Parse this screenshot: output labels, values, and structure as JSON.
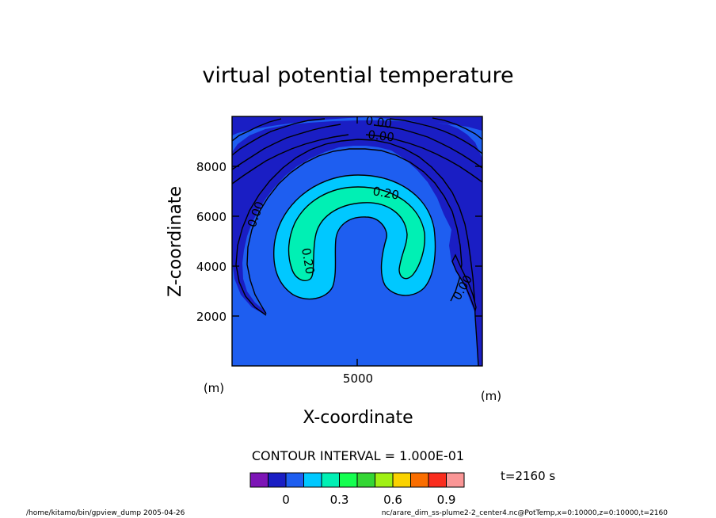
{
  "chart_data": {
    "type": "contour",
    "title": "virtual potential temperature",
    "xlabel": "X-coordinate",
    "ylabel": "Z-coordinate",
    "x_unit": "(m)",
    "y_unit": "(m)",
    "xlim": [
      0,
      10000
    ],
    "ylim": [
      0,
      10000
    ],
    "x_ticks": [
      5000
    ],
    "y_ticks": [
      2000,
      4000,
      6000,
      8000
    ],
    "x_tick_labels": [
      "5000"
    ],
    "y_tick_labels": [
      "2000",
      "4000",
      "6000",
      "8000"
    ],
    "contour_interval_text": "CONTOUR INTERVAL = 1.000E-01",
    "contour_labels": [
      {
        "text": "0.00",
        "x": 5300,
        "z": 9650
      },
      {
        "text": "0.00",
        "x": 5900,
        "z": 9200
      },
      {
        "text": "0.00",
        "x": 1000,
        "z": 6050
      },
      {
        "text": "0.00",
        "x": 9000,
        "z": 3150
      },
      {
        "text": "0.20",
        "x": 6200,
        "z": 7000
      },
      {
        "text": "0.20",
        "x": 3000,
        "z": 4100
      }
    ],
    "colorbar": {
      "levels": [
        -0.2,
        -0.1,
        0,
        0.1,
        0.2,
        0.3,
        0.4,
        0.5,
        0.6,
        0.7,
        0.8,
        0.9,
        1.0
      ],
      "colors": [
        "#7d15b6",
        "#1a1ec4",
        "#1e5ef0",
        "#00c8ff",
        "#00f0b4",
        "#14ff50",
        "#34d634",
        "#a0f014",
        "#fad200",
        "#fa6e00",
        "#fa2d1e",
        "#fa9696"
      ],
      "tick_values": [
        0,
        0.3,
        0.6,
        0.9
      ],
      "tick_labels": [
        "0",
        "0.3",
        "0.6",
        "0.9"
      ]
    },
    "colors": {
      "background_level": "#1e5ef0",
      "ring_band": "#1a1ec4",
      "plume_outer": "#00c8ff",
      "plume_core": "#00f0b4"
    },
    "time_label": "t=2160 s",
    "footer_left": "/home/kitamo/bin/gpview_dump  2005-04-26",
    "footer_right": "nc/arare_dim_ss-plume2-2_center4.nc@PotTemp,x=0:10000,z=0:10000,t=2160"
  }
}
